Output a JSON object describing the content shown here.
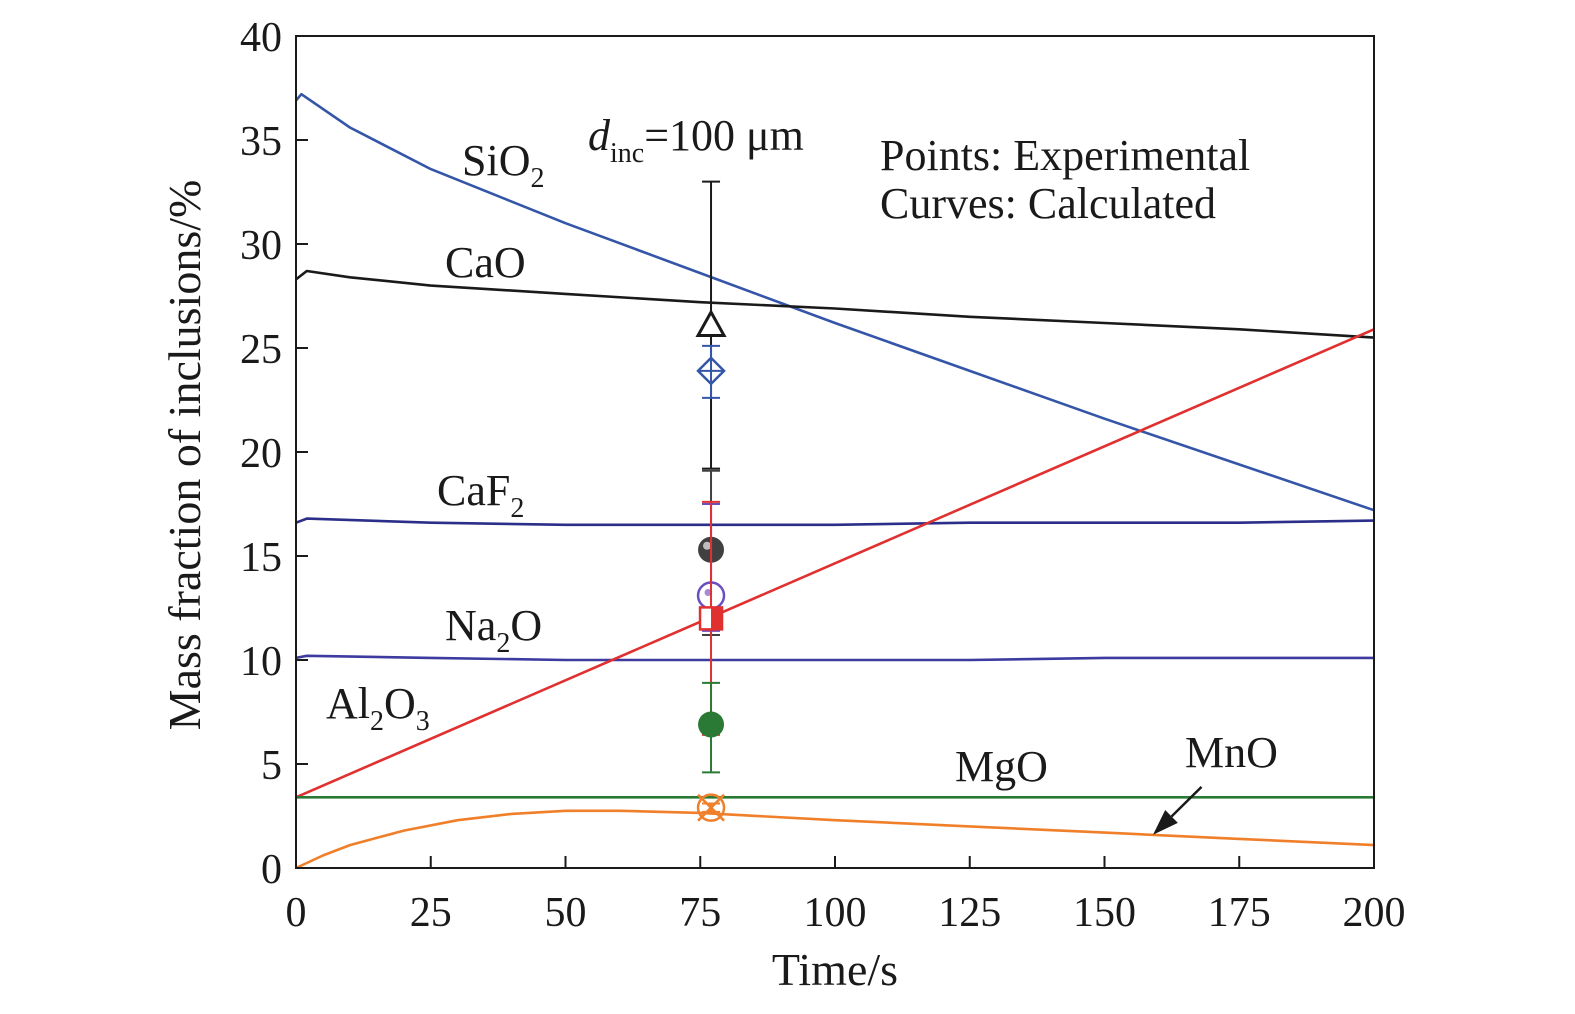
{
  "chart_data": {
    "type": "line",
    "title": "",
    "xlabel": "Time/s",
    "ylabel": "Mass fraction of inclusions/%",
    "xlim": [
      0,
      200
    ],
    "ylim": [
      0,
      40
    ],
    "xticks": [
      0,
      25,
      50,
      75,
      100,
      125,
      150,
      175,
      200
    ],
    "yticks": [
      0,
      5,
      10,
      15,
      20,
      25,
      30,
      35,
      40
    ],
    "grid": false,
    "legend": "none",
    "annotations": {
      "size_main": "d",
      "size_sub": "inc",
      "size_value": "=100 μm",
      "points_note": "Points: Experimental",
      "curves_note": "Curves: Calculated"
    },
    "series": [
      {
        "name": "SiO2",
        "label_main": "SiO",
        "label_sub": "2",
        "label_tail": "",
        "color": "#3556a8",
        "x": [
          0,
          1,
          10,
          25,
          50,
          75,
          100,
          125,
          150,
          175,
          200
        ],
        "y": [
          36.9,
          37.2,
          35.6,
          33.6,
          31.0,
          28.6,
          26.2,
          23.9,
          21.6,
          19.4,
          17.2
        ]
      },
      {
        "name": "CaO",
        "label_main": "CaO",
        "label_sub": "",
        "label_tail": "",
        "color": "#1a1a1a",
        "x": [
          0,
          2,
          10,
          25,
          50,
          75,
          100,
          125,
          150,
          175,
          200
        ],
        "y": [
          28.3,
          28.7,
          28.4,
          28.0,
          27.6,
          27.2,
          26.9,
          26.5,
          26.2,
          25.9,
          25.5
        ]
      },
      {
        "name": "CaF2",
        "label_main": "CaF",
        "label_sub": "2",
        "label_tail": "",
        "color": "#2c2f8a",
        "x": [
          0,
          2,
          25,
          50,
          75,
          100,
          125,
          150,
          175,
          200
        ],
        "y": [
          16.6,
          16.8,
          16.6,
          16.5,
          16.5,
          16.5,
          16.6,
          16.6,
          16.6,
          16.7
        ]
      },
      {
        "name": "Na2O",
        "label_main": "Na",
        "label_sub": "2",
        "label_tail": "O",
        "color": "#3d3aa0",
        "x": [
          0,
          2,
          25,
          50,
          75,
          100,
          125,
          150,
          175,
          200
        ],
        "y": [
          10.1,
          10.2,
          10.1,
          10.0,
          10.0,
          10.0,
          10.0,
          10.1,
          10.1,
          10.1
        ]
      },
      {
        "name": "Al2O3",
        "label_main": "Al",
        "label_sub": "2",
        "label_tail": "O",
        "label_sub2": "3",
        "color": "#e03030",
        "x": [
          0,
          200
        ],
        "y": [
          3.4,
          25.9
        ]
      },
      {
        "name": "MgO",
        "label_main": "MgO",
        "label_sub": "",
        "label_tail": "",
        "color": "#2a7a35",
        "x": [
          0,
          50,
          100,
          150,
          200
        ],
        "y": [
          3.4,
          3.4,
          3.4,
          3.4,
          3.4
        ]
      },
      {
        "name": "MnO",
        "label_main": "MnO",
        "label_sub": "",
        "label_tail": "",
        "color": "#f07f2a",
        "x": [
          0,
          5,
          10,
          20,
          30,
          40,
          50,
          60,
          75,
          100,
          125,
          150,
          175,
          200
        ],
        "y": [
          0.0,
          0.6,
          1.1,
          1.8,
          2.3,
          2.6,
          2.75,
          2.75,
          2.65,
          2.3,
          2.0,
          1.7,
          1.4,
          1.1
        ]
      }
    ],
    "experimental_points": [
      {
        "name": "CaO",
        "x": 77,
        "y": 26.1,
        "err_low": 19.2,
        "err_high": 33.0,
        "marker": "triangle",
        "color": "#1a1a1a"
      },
      {
        "name": "SiO2",
        "x": 77,
        "y": 23.9,
        "err_low": 22.6,
        "err_high": 25.1,
        "marker": "diamond-cross",
        "color": "#3556a8"
      },
      {
        "name": "CaF2",
        "x": 77,
        "y": 15.3,
        "err_low": 11.2,
        "err_high": 19.1,
        "marker": "sphere",
        "color": "#404040"
      },
      {
        "name": "Na2O",
        "x": 77,
        "y": 13.1,
        "err_low": 11.4,
        "err_high": 17.5,
        "marker": "circle-open",
        "color": "#6a4fc0"
      },
      {
        "name": "Al2O3",
        "x": 77,
        "y": 12.0,
        "err_low": 6.4,
        "err_high": 17.6,
        "marker": "square-half",
        "color": "#e03030"
      },
      {
        "name": "MgO",
        "x": 77,
        "y": 6.9,
        "err_low": 4.6,
        "err_high": 8.9,
        "marker": "circle-filled",
        "color": "#2a7a35"
      },
      {
        "name": "MnO",
        "x": 77,
        "y": 2.9,
        "err_low": 2.7,
        "err_high": 3.1,
        "marker": "x-circle",
        "color": "#f07f2a"
      }
    ],
    "arrow": {
      "from": [
        168,
        3.9
      ],
      "to": [
        159,
        1.6
      ],
      "target": "MnO"
    }
  }
}
